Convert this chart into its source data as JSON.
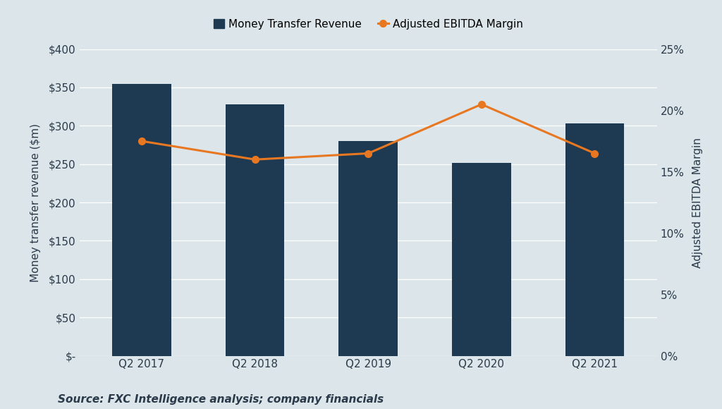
{
  "categories": [
    "Q2 2017",
    "Q2 2018",
    "Q2 2019",
    "Q2 2020",
    "Q2 2021"
  ],
  "revenue": [
    355,
    328,
    280,
    252,
    303
  ],
  "ebitda_margin": [
    17.5,
    16.0,
    16.5,
    20.5,
    16.5
  ],
  "bar_color": "#1e3a52",
  "line_color": "#e87722",
  "background_color": "#dce6ea",
  "text_color": "#2b3a4a",
  "grid_color": "#ffffff",
  "ylabel_left": "Money transfer revenue ($m)",
  "ylabel_right": "Adjusted EBITDA Margin",
  "ylim_left": [
    0,
    400
  ],
  "ylim_right": [
    0,
    25
  ],
  "yticks_left": [
    0,
    50,
    100,
    150,
    200,
    250,
    300,
    350,
    400
  ],
  "yticks_right": [
    0,
    5,
    10,
    15,
    20,
    25
  ],
  "legend_labels": [
    "Money Transfer Revenue",
    "Adjusted EBITDA Margin"
  ],
  "source_text": "Source: FXC Intelligence analysis; company financials",
  "legend_fontsize": 11,
  "ylabel_fontsize": 11,
  "tick_fontsize": 11,
  "source_fontsize": 11
}
